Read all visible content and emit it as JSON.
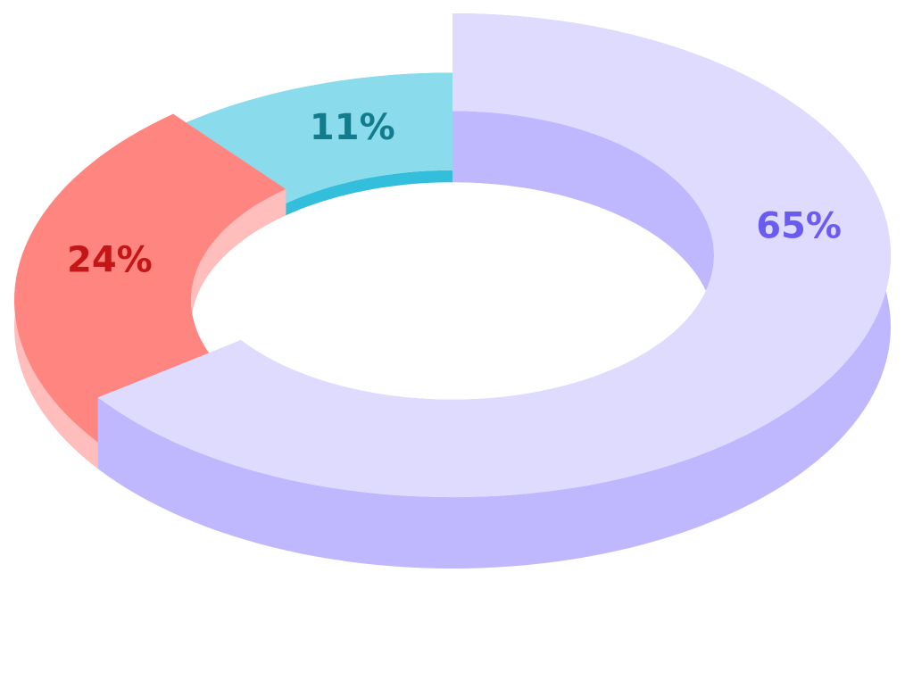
{
  "chart_data": {
    "type": "donut",
    "values": [
      65,
      24,
      11
    ],
    "value_labels": [
      "65%",
      "24%",
      "11%"
    ],
    "colors": [
      "#dfdbff",
      "#ff8680",
      "#8adcec"
    ],
    "side_colors": [
      "#bfb8ff",
      "#ffbdbb",
      "#33bedc"
    ],
    "label_colors": [
      "#6a5cf0",
      "#c41616",
      "#137c8c"
    ]
  }
}
